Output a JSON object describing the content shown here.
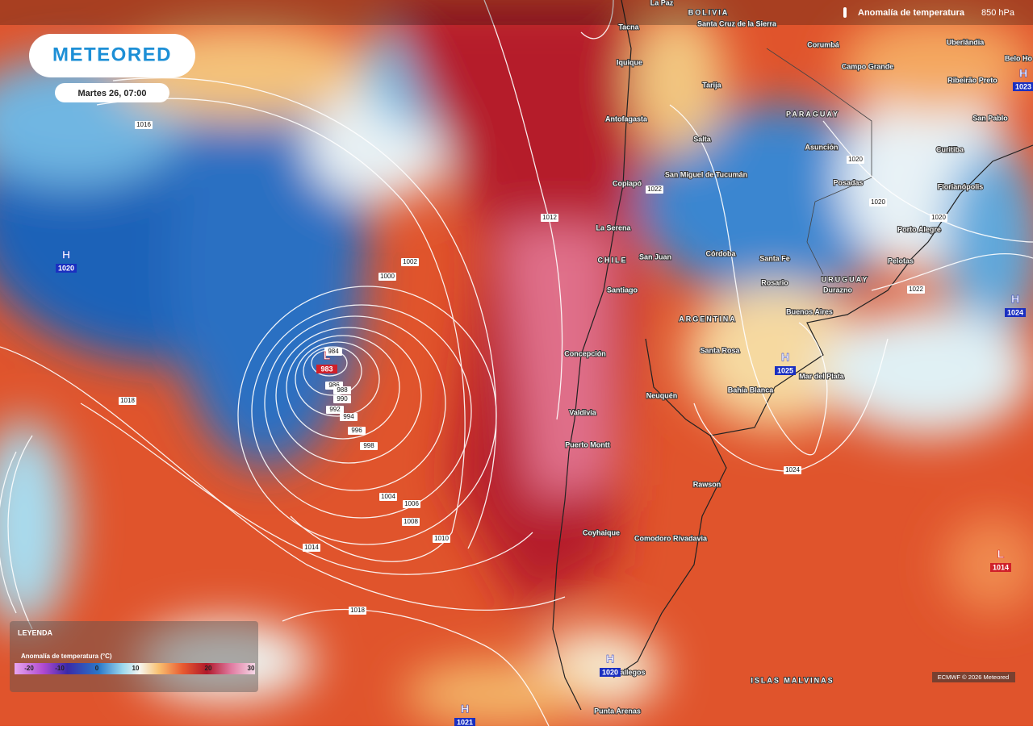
{
  "header": {
    "logo": "METEORED",
    "date": "Martes 26, 07:00",
    "layer": "Anomalía de temperatura",
    "level": "850 hPa"
  },
  "legend": {
    "title": "LEYENDA",
    "subtitle": "Anomalía de temperatura (°C)",
    "ticks": [
      "-20",
      "-10",
      "0",
      "10",
      "20",
      "30"
    ]
  },
  "credit": "ECMWF © 2026 Meteored",
  "places": [
    "La Paz",
    "BOLIVIA",
    "Santa Cruz de la Sierra",
    "Tacna",
    "Iquique",
    "Antofagasta",
    "Copiapó",
    "La Serena",
    "CHILE",
    "Santiago",
    "Concepción",
    "Valdivia",
    "Puerto Montt",
    "Coyhaique",
    "Río Gallegos",
    "Punta Arenas",
    "Comodoro Rivadavia",
    "Rawson",
    "Neuquén",
    "Bahía Blanca",
    "Mar del Plata",
    "Santa Rosa",
    "ARGENTINA",
    "Buenos Aires",
    "Rosario",
    "Santa Fe",
    "Córdoba",
    "San Juan",
    "San Miguel de Tucumán",
    "Salta",
    "Tarija",
    "PARAGUAY",
    "Asunción",
    "Posadas",
    "URUGUAY",
    "Durazno",
    "Pelotas",
    "Porto Alegre",
    "Florianópolis",
    "Curitiba",
    "San Pablo",
    "Campo Grande",
    "Corumbá",
    "Ribeirão Preto",
    "Uberlândia",
    "Belo Ho",
    "ISLAS MALVINAS"
  ],
  "centers": [
    {
      "type": "H",
      "value": "1020"
    },
    {
      "type": "L",
      "value": "983"
    },
    {
      "type": "H",
      "value": "1024"
    },
    {
      "type": "H",
      "value": "1025"
    },
    {
      "type": "H",
      "value": "1020"
    },
    {
      "type": "H",
      "value": "1021"
    },
    {
      "type": "L",
      "value": "1014"
    },
    {
      "type": "H",
      "value": "1023"
    }
  ],
  "isobars": [
    "1016",
    "1018",
    "1012",
    "1002",
    "1000",
    "984",
    "986",
    "988",
    "990",
    "992",
    "994",
    "996",
    "998",
    "1004",
    "1006",
    "1008",
    "1010",
    "1014",
    "1018",
    "1022",
    "1020",
    "1020",
    "1020",
    "1022",
    "1024"
  ]
}
